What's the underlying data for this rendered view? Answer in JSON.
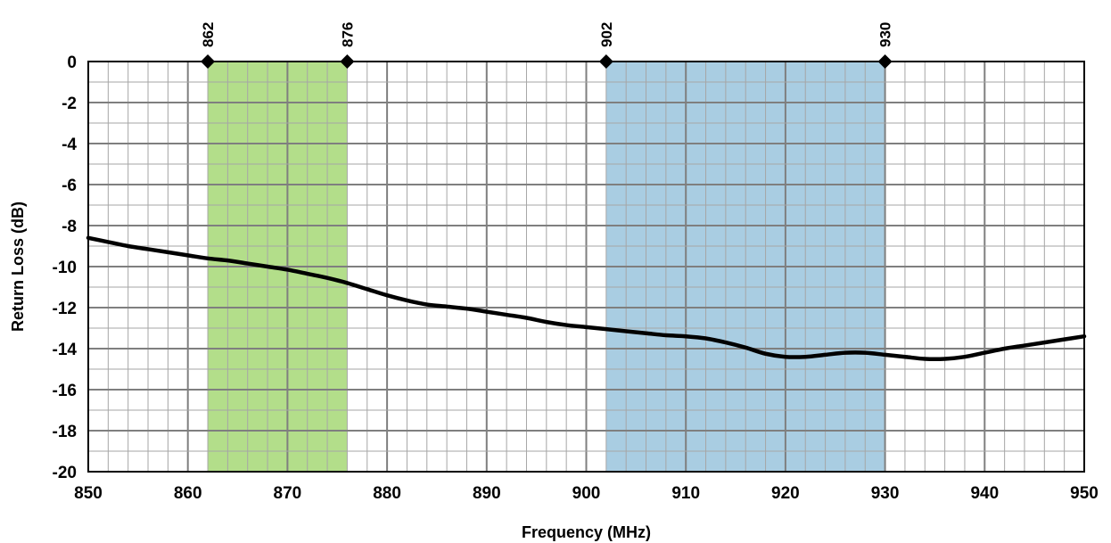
{
  "chart_data": {
    "type": "line",
    "xlabel": "Frequency (MHz)",
    "ylabel": "Return Loss (dB)",
    "xlim": [
      850,
      950
    ],
    "ylim": [
      -20,
      0
    ],
    "x_ticks": [
      850,
      860,
      870,
      880,
      890,
      900,
      910,
      920,
      930,
      940,
      950
    ],
    "y_ticks": [
      0,
      -2,
      -4,
      -6,
      -8,
      -10,
      -12,
      -14,
      -16,
      -18,
      -20
    ],
    "minor_x_step": 2,
    "minor_y_step": 1,
    "grid": true,
    "bands": [
      {
        "x0": 862,
        "x1": 876,
        "color": "#b3de8a"
      },
      {
        "x0": 902,
        "x1": 930,
        "color": "#a9cde2"
      }
    ],
    "markers": [
      {
        "x": 862,
        "label": "862"
      },
      {
        "x": 876,
        "label": "876"
      },
      {
        "x": 902,
        "label": "902"
      },
      {
        "x": 930,
        "label": "930"
      }
    ],
    "series": [
      {
        "color": "#000000",
        "x": [
          850,
          852,
          854,
          856,
          858,
          860,
          862,
          864,
          866,
          868,
          870,
          872,
          874,
          876,
          878,
          880,
          882,
          884,
          886,
          888,
          890,
          892,
          894,
          896,
          898,
          900,
          902,
          904,
          906,
          908,
          910,
          912,
          914,
          916,
          918,
          920,
          922,
          924,
          926,
          928,
          930,
          932,
          934,
          936,
          938,
          940,
          942,
          944,
          946,
          948,
          950
        ],
        "y": [
          -8.6,
          -8.8,
          -9.0,
          -9.15,
          -9.3,
          -9.45,
          -9.6,
          -9.7,
          -9.85,
          -10.0,
          -10.15,
          -10.35,
          -10.55,
          -10.8,
          -11.1,
          -11.4,
          -11.65,
          -11.85,
          -11.95,
          -12.05,
          -12.2,
          -12.35,
          -12.5,
          -12.7,
          -12.85,
          -12.95,
          -13.05,
          -13.15,
          -13.25,
          -13.35,
          -13.4,
          -13.5,
          -13.7,
          -13.95,
          -14.25,
          -14.4,
          -14.4,
          -14.3,
          -14.2,
          -14.2,
          -14.3,
          -14.4,
          -14.5,
          -14.5,
          -14.4,
          -14.2,
          -14.0,
          -13.85,
          -13.7,
          -13.55,
          -13.4
        ]
      }
    ]
  }
}
